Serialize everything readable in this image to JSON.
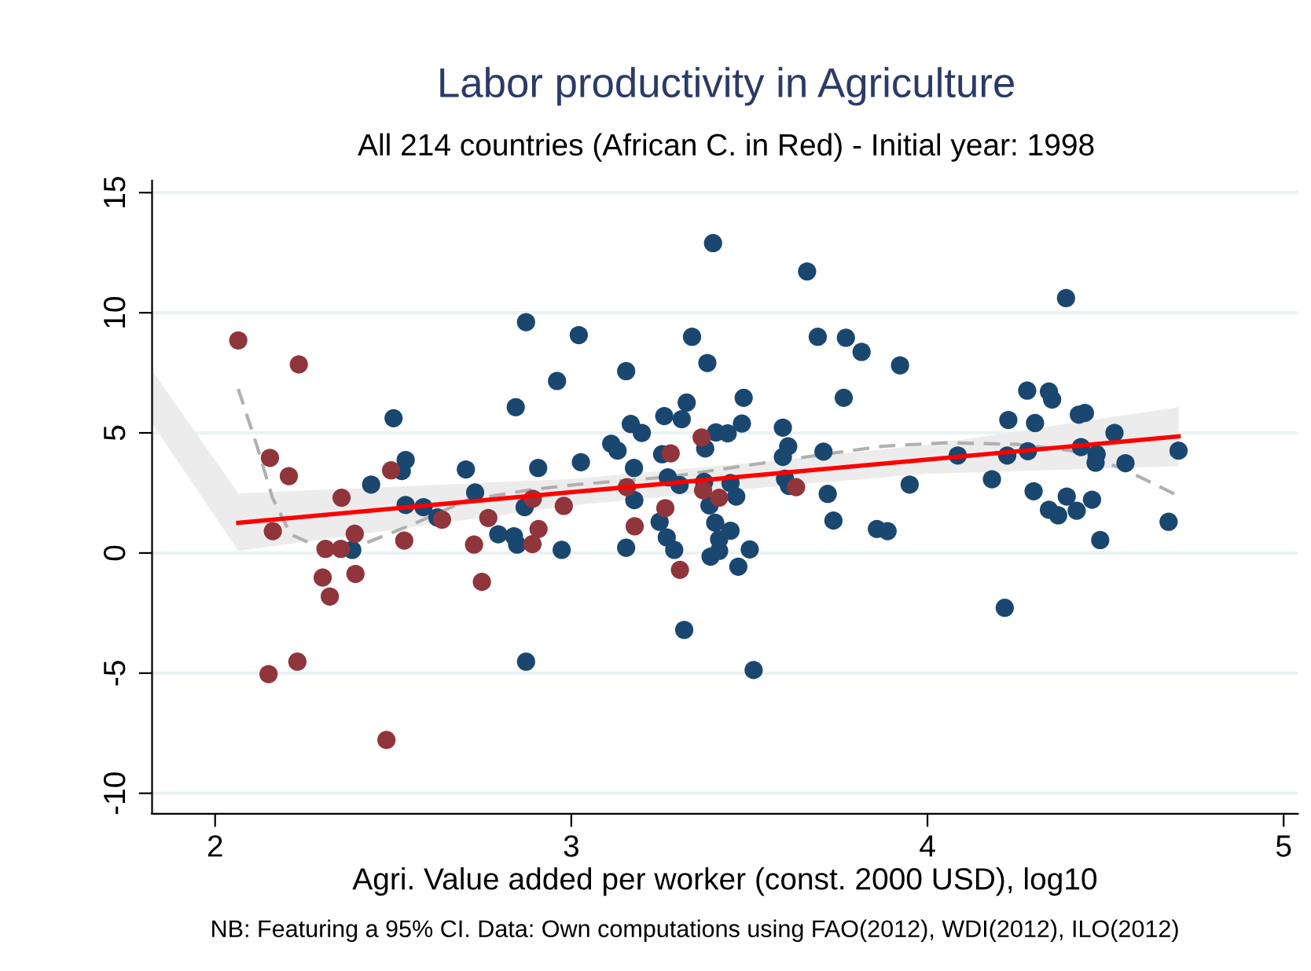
{
  "chart_data": {
    "type": "scatter",
    "title": "Labor productivity in Agriculture",
    "subtitle": "All 214 countries (African C. in Red) - Initial year: 1998",
    "xlabel": "Agri. Value added per worker (const. 2000 USD), log10",
    "annotations": [
      "NB: Featuring a 95% CI. Data: Own computations using FAO(2012), WDI(2012), ILO(2012)"
    ],
    "xlim": [
      1.823,
      5.04
    ],
    "ylim": [
      -10.85,
      15.5
    ],
    "xticks": [
      2,
      3,
      4,
      5
    ],
    "yticks": [
      -10,
      -5,
      0,
      5,
      10,
      15
    ],
    "grid": "y",
    "legend": false,
    "series": [
      {
        "marker": "circle",
        "color": "#1a476f",
        "x": [
          2.873,
          3.021,
          2.96,
          2.844,
          2.501,
          2.535,
          2.524,
          2.438,
          2.704,
          2.907,
          3.027,
          2.73,
          2.535,
          2.585,
          2.624,
          2.869,
          2.795,
          2.839,
          2.848,
          2.973,
          2.385,
          2.873,
          3.398,
          3.662,
          3.339,
          3.692,
          3.771,
          3.815,
          3.923,
          3.382,
          3.154,
          3.324,
          3.484,
          3.765,
          3.261,
          3.31,
          3.167,
          3.198,
          3.479,
          3.406,
          3.439,
          3.594,
          3.609,
          3.594,
          3.708,
          3.112,
          3.13,
          3.255,
          3.376,
          3.176,
          3.271,
          3.304,
          3.373,
          3.447,
          3.463,
          3.6,
          3.611,
          3.72,
          3.95,
          3.177,
          3.388,
          3.248,
          3.404,
          3.447,
          3.268,
          3.415,
          3.289,
          3.391,
          3.415,
          3.501,
          3.469,
          3.154,
          3.736,
          3.858,
          3.888,
          3.317,
          3.512,
          4.389,
          4.28,
          4.341,
          4.35,
          4.227,
          4.302,
          4.425,
          4.442,
          4.525,
          4.085,
          4.224,
          4.282,
          4.431,
          4.475,
          4.472,
          4.556,
          4.705,
          4.181,
          4.298,
          4.391,
          4.462,
          4.341,
          4.367,
          4.419,
          4.485,
          4.677,
          4.217
        ],
        "values": [
          9.61,
          9.07,
          7.16,
          6.07,
          5.61,
          3.87,
          3.41,
          2.85,
          3.48,
          3.54,
          3.78,
          2.52,
          2.0,
          1.91,
          1.48,
          1.91,
          0.78,
          0.7,
          0.35,
          0.13,
          0.13,
          -4.52,
          12.9,
          11.72,
          9.0,
          9.0,
          8.96,
          8.37,
          7.81,
          7.91,
          7.57,
          6.26,
          6.46,
          6.46,
          5.7,
          5.57,
          5.37,
          5.0,
          5.39,
          5.02,
          4.98,
          5.22,
          4.44,
          4.0,
          4.22,
          4.55,
          4.26,
          4.11,
          4.35,
          3.54,
          3.15,
          2.83,
          2.96,
          2.91,
          2.35,
          3.09,
          2.79,
          2.46,
          2.85,
          2.2,
          1.98,
          1.3,
          1.26,
          0.93,
          0.65,
          0.57,
          0.13,
          -0.15,
          0.09,
          0.15,
          -0.57,
          0.22,
          1.35,
          1.0,
          0.91,
          -3.2,
          -4.87,
          10.61,
          6.76,
          6.72,
          6.39,
          5.54,
          5.41,
          5.76,
          5.83,
          5.0,
          4.06,
          4.06,
          4.24,
          4.41,
          4.11,
          3.76,
          3.74,
          4.26,
          3.07,
          2.57,
          2.35,
          2.22,
          1.8,
          1.57,
          1.76,
          0.54,
          1.3,
          -2.28
        ]
      },
      {
        "marker": "circle",
        "color": "#90353b",
        "x": [
          2.065,
          2.235,
          2.154,
          2.207,
          2.355,
          2.494,
          2.162,
          2.392,
          2.31,
          2.353,
          2.531,
          2.637,
          2.727,
          2.767,
          2.749,
          2.892,
          2.979,
          2.908,
          2.891,
          2.302,
          2.394,
          2.322,
          2.15,
          2.231,
          2.481,
          3.279,
          3.366,
          3.156,
          3.37,
          3.415,
          3.264,
          3.178,
          3.305,
          3.631
        ],
        "values": [
          8.85,
          7.85,
          3.96,
          3.2,
          2.3,
          3.44,
          0.91,
          0.8,
          0.17,
          0.17,
          0.52,
          1.39,
          0.35,
          1.46,
          -1.2,
          2.26,
          1.96,
          1.0,
          0.37,
          -1.02,
          -0.87,
          -1.81,
          -5.04,
          -4.52,
          -7.78,
          4.15,
          4.81,
          2.74,
          2.61,
          2.3,
          1.87,
          1.11,
          -0.7,
          2.74
        ]
      },
      {
        "type": "line",
        "color": "#ff0000",
        "line_style": "solid",
        "x": [
          1.823,
          2.065,
          3.0,
          3.5,
          4.0,
          4.705
        ],
        "values": [
          null,
          1.26,
          2.53,
          3.21,
          3.89,
          4.85
        ],
        "lower": [
          5.4,
          0.09,
          1.98,
          2.68,
          3.3,
          3.61
        ],
        "upper": [
          7.6,
          2.48,
          3.08,
          3.74,
          4.5,
          6.07
        ]
      },
      {
        "type": "line",
        "color": "#b0b0b0",
        "line_style": "dashed",
        "x": [
          2.065,
          2.117,
          2.161,
          2.212,
          2.308,
          2.412,
          2.559,
          2.707,
          2.884,
          3.016,
          3.282,
          3.577,
          3.872,
          4.049,
          4.255,
          4.403,
          4.55,
          4.705
        ],
        "values": [
          6.83,
          4.48,
          2.3,
          0.78,
          0.13,
          0.35,
          1.22,
          2.2,
          2.63,
          2.85,
          3.18,
          3.83,
          4.44,
          4.59,
          4.52,
          4.26,
          3.5,
          2.37
        ]
      }
    ]
  }
}
